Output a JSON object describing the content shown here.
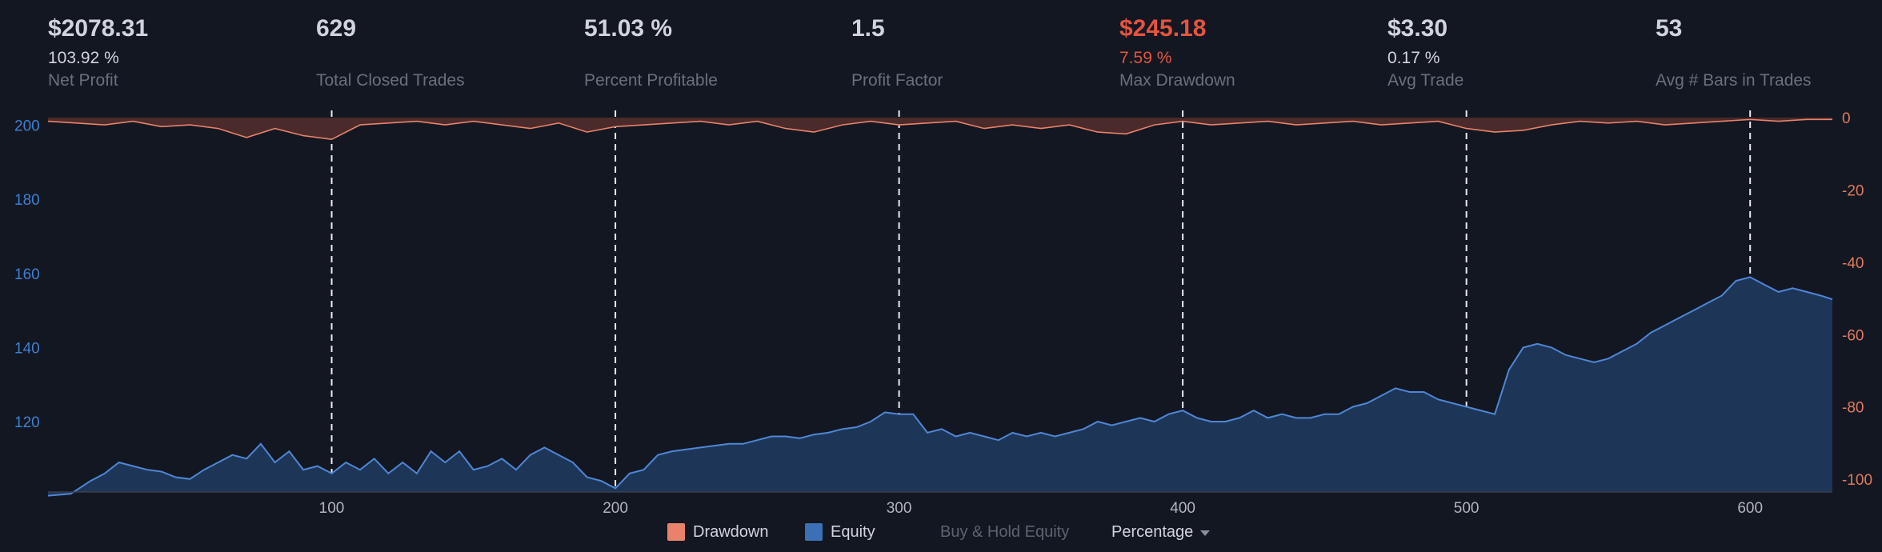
{
  "metrics": [
    {
      "value": "$2078.31",
      "sub": "103.92 %",
      "label": "Net Profit"
    },
    {
      "value": "629",
      "sub": "",
      "label": "Total Closed Trades"
    },
    {
      "value": "51.03 %",
      "sub": "",
      "label": "Percent Profitable"
    },
    {
      "value": "1.5",
      "sub": "",
      "label": "Profit Factor"
    },
    {
      "value": "$245.18",
      "sub": "7.59 %",
      "label": "Max Drawdown"
    },
    {
      "value": "$3.30",
      "sub": "0.17 %",
      "label": "Avg Trade"
    },
    {
      "value": "53",
      "sub": "",
      "label": "Avg # Bars in Trades"
    }
  ],
  "colors": {
    "background": "#131722",
    "equity_line": "#4f86d6",
    "equity_fill": "#1d3658",
    "drawdown_line": "#e8826a",
    "drawdown_fill": "#4a2a2a",
    "left_axis_text": "#3f7fd0",
    "right_axis_text": "#e07a5c",
    "danger": "#e4543f",
    "muted": "#6a6f7e"
  },
  "legend": {
    "drawdown": "Drawdown",
    "equity": "Equity",
    "buy_hold": "Buy & Hold Equity",
    "mode": "Percentage"
  },
  "chart_data": {
    "type": "area",
    "x_ticks": [
      100,
      200,
      300,
      400,
      500,
      600
    ],
    "xlim": [
      0,
      629
    ],
    "left_axis": {
      "ticks": [
        120,
        140,
        160,
        180,
        200
      ],
      "range": [
        101,
        204
      ]
    },
    "right_axis": {
      "ticks": [
        0,
        -20,
        -40,
        -60,
        -80,
        -100
      ],
      "range": [
        -103.5,
        2
      ]
    },
    "vertical_dashed_lines": [
      100,
      200,
      300,
      400,
      500,
      600
    ],
    "series": [
      {
        "name": "Equity",
        "axis": "left",
        "points": [
          [
            0,
            100
          ],
          [
            8,
            100.5
          ],
          [
            15,
            104
          ],
          [
            20,
            106
          ],
          [
            25,
            109
          ],
          [
            30,
            108
          ],
          [
            35,
            107
          ],
          [
            40,
            106.5
          ],
          [
            45,
            105
          ],
          [
            50,
            104.5
          ],
          [
            55,
            107
          ],
          [
            60,
            109
          ],
          [
            65,
            111
          ],
          [
            70,
            110
          ],
          [
            75,
            114
          ],
          [
            80,
            109
          ],
          [
            85,
            112
          ],
          [
            90,
            107
          ],
          [
            95,
            108
          ],
          [
            100,
            106
          ],
          [
            105,
            109
          ],
          [
            110,
            107
          ],
          [
            115,
            110
          ],
          [
            120,
            106
          ],
          [
            125,
            109
          ],
          [
            130,
            106
          ],
          [
            135,
            112
          ],
          [
            140,
            109
          ],
          [
            145,
            112
          ],
          [
            150,
            107
          ],
          [
            155,
            108
          ],
          [
            160,
            110
          ],
          [
            165,
            107
          ],
          [
            170,
            111
          ],
          [
            175,
            113
          ],
          [
            180,
            111
          ],
          [
            185,
            109
          ],
          [
            190,
            105
          ],
          [
            195,
            104
          ],
          [
            200,
            102
          ],
          [
            205,
            106
          ],
          [
            210,
            107
          ],
          [
            215,
            111
          ],
          [
            220,
            112
          ],
          [
            225,
            112.5
          ],
          [
            230,
            113
          ],
          [
            235,
            113.5
          ],
          [
            240,
            114
          ],
          [
            245,
            114
          ],
          [
            250,
            115
          ],
          [
            255,
            116
          ],
          [
            260,
            116
          ],
          [
            265,
            115.5
          ],
          [
            270,
            116.5
          ],
          [
            275,
            117
          ],
          [
            280,
            118
          ],
          [
            285,
            118.5
          ],
          [
            290,
            120
          ],
          [
            295,
            122.5
          ],
          [
            300,
            122
          ],
          [
            305,
            122
          ],
          [
            310,
            117
          ],
          [
            315,
            118
          ],
          [
            320,
            116
          ],
          [
            325,
            117
          ],
          [
            330,
            116
          ],
          [
            335,
            115
          ],
          [
            340,
            117
          ],
          [
            345,
            116
          ],
          [
            350,
            117
          ],
          [
            355,
            116
          ],
          [
            360,
            117
          ],
          [
            365,
            118
          ],
          [
            370,
            120
          ],
          [
            375,
            119
          ],
          [
            380,
            120
          ],
          [
            385,
            121
          ],
          [
            390,
            120
          ],
          [
            395,
            122
          ],
          [
            400,
            123
          ],
          [
            405,
            121
          ],
          [
            410,
            120
          ],
          [
            415,
            120
          ],
          [
            420,
            121
          ],
          [
            425,
            123
          ],
          [
            430,
            121
          ],
          [
            435,
            122
          ],
          [
            440,
            121
          ],
          [
            445,
            121
          ],
          [
            450,
            122
          ],
          [
            455,
            122
          ],
          [
            460,
            124
          ],
          [
            465,
            125
          ],
          [
            470,
            127
          ],
          [
            475,
            129
          ],
          [
            480,
            128
          ],
          [
            485,
            128
          ],
          [
            490,
            126
          ],
          [
            495,
            125
          ],
          [
            500,
            124
          ],
          [
            505,
            123
          ],
          [
            510,
            122
          ],
          [
            515,
            134
          ],
          [
            520,
            140
          ],
          [
            525,
            141
          ],
          [
            530,
            140
          ],
          [
            535,
            138
          ],
          [
            540,
            137
          ],
          [
            545,
            136
          ],
          [
            550,
            137
          ],
          [
            555,
            139
          ],
          [
            560,
            141
          ],
          [
            565,
            144
          ],
          [
            570,
            146
          ],
          [
            575,
            148
          ],
          [
            580,
            150
          ],
          [
            585,
            152
          ],
          [
            590,
            154
          ],
          [
            595,
            158
          ],
          [
            600,
            159
          ],
          [
            605,
            157
          ],
          [
            610,
            155
          ],
          [
            615,
            156
          ],
          [
            620,
            155
          ],
          [
            625,
            154
          ],
          [
            629,
            153
          ]
        ]
      },
      {
        "name": "Drawdown",
        "axis": "right",
        "points": [
          [
            0,
            -1
          ],
          [
            10,
            -1.5
          ],
          [
            20,
            -2
          ],
          [
            30,
            -1
          ],
          [
            40,
            -2.5
          ],
          [
            50,
            -2
          ],
          [
            60,
            -3
          ],
          [
            70,
            -5.5
          ],
          [
            80,
            -3
          ],
          [
            90,
            -5
          ],
          [
            100,
            -6
          ],
          [
            110,
            -2
          ],
          [
            120,
            -1.5
          ],
          [
            130,
            -1
          ],
          [
            140,
            -2
          ],
          [
            150,
            -1
          ],
          [
            160,
            -2
          ],
          [
            170,
            -3
          ],
          [
            180,
            -1.5
          ],
          [
            190,
            -4
          ],
          [
            200,
            -2.5
          ],
          [
            210,
            -2
          ],
          [
            220,
            -1.5
          ],
          [
            230,
            -1
          ],
          [
            240,
            -2
          ],
          [
            250,
            -1
          ],
          [
            260,
            -3
          ],
          [
            270,
            -4
          ],
          [
            280,
            -2
          ],
          [
            290,
            -1
          ],
          [
            300,
            -2
          ],
          [
            310,
            -1.5
          ],
          [
            320,
            -1
          ],
          [
            330,
            -3
          ],
          [
            340,
            -2
          ],
          [
            350,
            -3
          ],
          [
            360,
            -2
          ],
          [
            370,
            -4
          ],
          [
            380,
            -4.5
          ],
          [
            390,
            -2
          ],
          [
            400,
            -1
          ],
          [
            410,
            -2
          ],
          [
            420,
            -1.5
          ],
          [
            430,
            -1
          ],
          [
            440,
            -2
          ],
          [
            450,
            -1.5
          ],
          [
            460,
            -1
          ],
          [
            470,
            -2
          ],
          [
            480,
            -1.5
          ],
          [
            490,
            -1
          ],
          [
            500,
            -3
          ],
          [
            510,
            -4
          ],
          [
            520,
            -3.5
          ],
          [
            530,
            -2
          ],
          [
            540,
            -1
          ],
          [
            550,
            -1.5
          ],
          [
            560,
            -1
          ],
          [
            570,
            -2
          ],
          [
            580,
            -1.5
          ],
          [
            590,
            -1
          ],
          [
            600,
            -0.5
          ],
          [
            610,
            -1
          ],
          [
            620,
            -0.5
          ],
          [
            629,
            -0.5
          ]
        ]
      }
    ]
  }
}
